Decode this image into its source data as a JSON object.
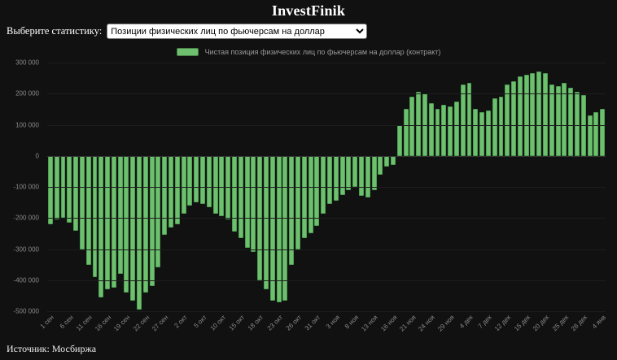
{
  "header": {
    "title": "InvestFinik"
  },
  "controls": {
    "label": "Выберите статистику:",
    "select_value": "Позиции физических лиц по фьючерсам на доллар"
  },
  "legend": {
    "label": "Чистая позиция физических лиц по фьючерсам на доллар (контракт)",
    "color": "#6ec06e"
  },
  "footer": {
    "source": "Источник: Мосбиржа"
  },
  "colors": {
    "background": "#111111",
    "bar_fill": "#6ec06e",
    "bar_border": "#4d9e53",
    "grid": "#1d1d1d",
    "zero_line": "#343434",
    "axis_text": "#8a8a8a"
  },
  "chart_data": {
    "type": "bar",
    "title": "Чистая позиция физических лиц по фьючерсам на доллар (контракт)",
    "ylim": [
      -500000,
      300000
    ],
    "grid": true,
    "legend_position": "top",
    "y_tick_values": [
      300000,
      200000,
      100000,
      0,
      -100000,
      -200000,
      -300000,
      -400000,
      -500000
    ],
    "y_tick_labels": [
      "300 000",
      "200 000",
      "100 000",
      "0",
      "-100 000",
      "-200 000",
      "-300 000",
      "-400 000",
      "-500 000"
    ],
    "x_tick_labels": [
      "1 сен",
      "6 сен",
      "11 сен",
      "16 сен",
      "19 сен",
      "22 сен",
      "27 сен",
      "2 окт",
      "5 окт",
      "10 окт",
      "15 окт",
      "18 окт",
      "23 окт",
      "26 окт",
      "31 окт",
      "3 ноя",
      "8 ноя",
      "13 ноя",
      "16 ноя",
      "21 ноя",
      "24 ноя",
      "29 ноя",
      "4 дек",
      "7 дек",
      "12 дек",
      "15 дек",
      "20 дек",
      "25 дек",
      "28 дек",
      "4 янв"
    ],
    "label_every": 3,
    "values": [
      -220000,
      -205000,
      -200000,
      -215000,
      -240000,
      -300000,
      -350000,
      -390000,
      -455000,
      -430000,
      -425000,
      -380000,
      -440000,
      -465000,
      -495000,
      -440000,
      -420000,
      -360000,
      -255000,
      -230000,
      -220000,
      -185000,
      -160000,
      -150000,
      -155000,
      -165000,
      -185000,
      -195000,
      -205000,
      -245000,
      -265000,
      -295000,
      -310000,
      -400000,
      -430000,
      -465000,
      -470000,
      -465000,
      -350000,
      -300000,
      -265000,
      -250000,
      -225000,
      -185000,
      -155000,
      -145000,
      -125000,
      -110000,
      -100000,
      -128000,
      -135000,
      -110000,
      -60000,
      -35000,
      -30000,
      100000,
      150000,
      190000,
      205000,
      200000,
      170000,
      150000,
      165000,
      160000,
      175000,
      230000,
      235000,
      150000,
      140000,
      145000,
      185000,
      190000,
      230000,
      240000,
      255000,
      260000,
      265000,
      270000,
      265000,
      230000,
      225000,
      235000,
      220000,
      205000,
      195000,
      130000,
      140000,
      150000
    ]
  }
}
